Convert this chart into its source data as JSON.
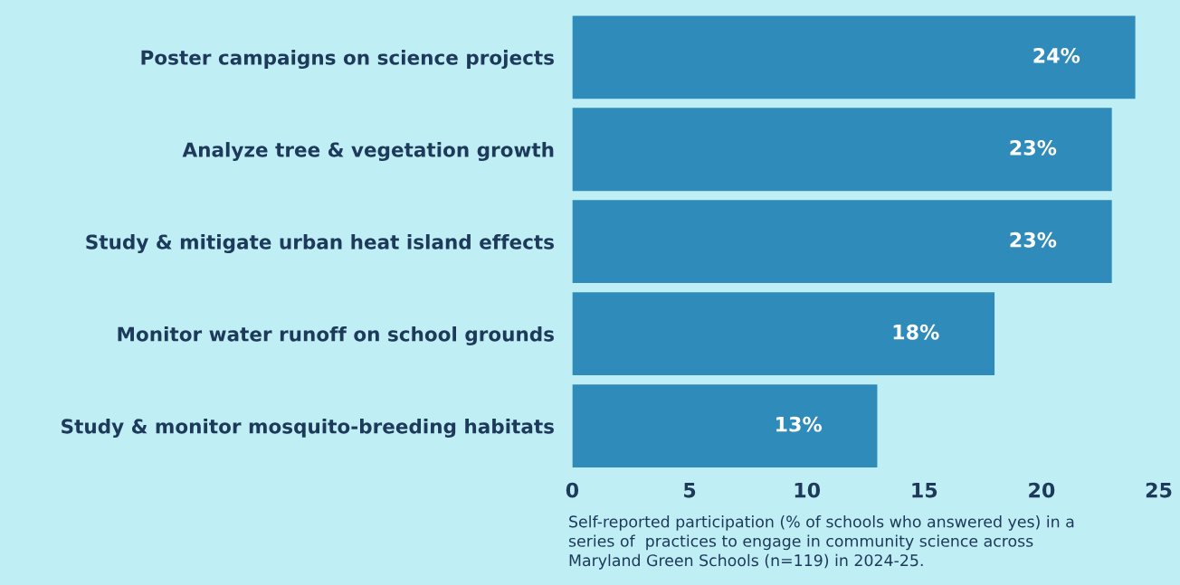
{
  "chart_data": {
    "type": "bar",
    "orientation": "horizontal",
    "categories": [
      "Poster campaigns on science projects",
      "Analyze tree & vegetation growth",
      "Study & mitigate urban heat island effects",
      "Monitor water runoff on school grounds",
      "Study & monitor mosquito-breeding habitats"
    ],
    "values": [
      24,
      23,
      23,
      18,
      13
    ],
    "value_labels": [
      "24%",
      "23%",
      "23%",
      "18%",
      "13%"
    ],
    "color": "#2e8bba",
    "xlim": [
      0,
      25
    ],
    "xticks": [
      0,
      5,
      10,
      15,
      20,
      25
    ],
    "grid": false,
    "legend": false,
    "annotations": [
      "Self-reported participation (% of schools who answered yes) in a\nseries of  practices to engage in community science across\nMaryland Green Schools (n=119) in 2024-25."
    ]
  }
}
